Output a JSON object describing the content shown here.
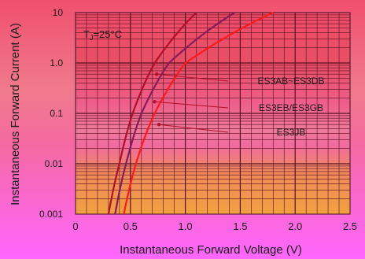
{
  "chart_data": {
    "type": "line",
    "title": "",
    "xlabel": "Instantaneous Forward Voltage (V)",
    "ylabel": "Instantaneous Forward Current (A)",
    "annotation": "TJ=25°C",
    "annotation_main": "T",
    "annotation_sub": "J",
    "annotation_rest": "=25°C",
    "x_ticks": [
      "0",
      "0.5",
      "1.0",
      "1.5",
      "2.0",
      "2.5"
    ],
    "x_tick_values": [
      0,
      0.5,
      1.0,
      1.5,
      2.0,
      2.5
    ],
    "y_ticks": [
      "10",
      "1.0",
      "0.1",
      "0.01",
      "0.001"
    ],
    "y_tick_values": [
      10,
      1,
      0.1,
      0.01,
      0.001
    ],
    "xlim": [
      0,
      2.5
    ],
    "ylim": [
      0.001,
      10
    ],
    "y_scale": "log",
    "grid": true,
    "series": [
      {
        "name": "ES3AB~ES3DB",
        "color": "#b0102a",
        "points": [
          [
            0.3,
            0.001
          ],
          [
            0.4,
            0.01
          ],
          [
            0.52,
            0.1
          ],
          [
            0.72,
            1.0
          ],
          [
            1.1,
            10
          ]
        ]
      },
      {
        "name": "ES3EB/ES3GB",
        "color": "#8a1a5a",
        "points": [
          [
            0.36,
            0.001
          ],
          [
            0.46,
            0.01
          ],
          [
            0.6,
            0.1
          ],
          [
            0.85,
            1.0
          ],
          [
            1.45,
            10
          ]
        ]
      },
      {
        "name": "ES3JB",
        "color": "#ff1a1a",
        "points": [
          [
            0.44,
            0.001
          ],
          [
            0.55,
            0.01
          ],
          [
            0.72,
            0.1
          ],
          [
            1.0,
            1.0
          ],
          [
            1.8,
            10
          ]
        ]
      }
    ]
  }
}
